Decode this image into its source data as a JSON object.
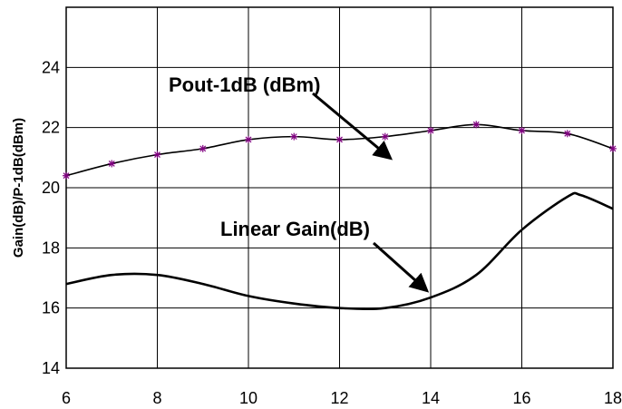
{
  "chart_data": {
    "type": "line",
    "title": "",
    "xlabel": "",
    "ylabel": "Gain(dB)/P-1dB(dBm)",
    "xlim": [
      6,
      18
    ],
    "ylim": [
      14,
      26
    ],
    "x_ticks": [
      6,
      8,
      10,
      12,
      14,
      16,
      18
    ],
    "y_ticks": [
      14,
      16,
      18,
      20,
      22,
      24
    ],
    "x_tick_labels": [
      "6",
      "8",
      "10",
      "12",
      "14",
      "16",
      "18"
    ],
    "y_tick_labels": [
      "14",
      "16",
      "18",
      "20",
      "22",
      "24"
    ],
    "grid": true,
    "legend": "none",
    "series": [
      {
        "name": "Pout-1dB (dBm)",
        "marker": "asterisk",
        "color": "#000000",
        "marker_color": "#800080",
        "x": [
          6,
          7,
          8,
          9,
          10,
          11,
          12,
          13,
          14,
          15,
          16,
          17,
          18
        ],
        "y": [
          20.4,
          20.8,
          21.1,
          21.3,
          21.6,
          21.7,
          21.6,
          21.7,
          21.9,
          22.1,
          21.9,
          21.8,
          21.3
        ]
      },
      {
        "name": "Linear Gain(dB)",
        "marker": "none",
        "color": "#000000",
        "x": [
          6,
          7,
          8,
          9,
          10,
          11,
          12,
          13,
          14,
          15,
          16,
          17,
          17.3,
          18
        ],
        "y": [
          16.8,
          17.1,
          17.1,
          16.8,
          16.4,
          16.15,
          16.0,
          16.0,
          16.35,
          17.1,
          18.6,
          19.7,
          19.75,
          19.3
        ]
      }
    ],
    "annotations": [
      {
        "id": "pout",
        "text": "Pout-1dB (dBm)",
        "arrow_to": [
          13.1,
          21.0
        ]
      },
      {
        "id": "gain",
        "text": "Linear Gain(dB)",
        "arrow_to": [
          13.9,
          16.6
        ]
      }
    ]
  }
}
